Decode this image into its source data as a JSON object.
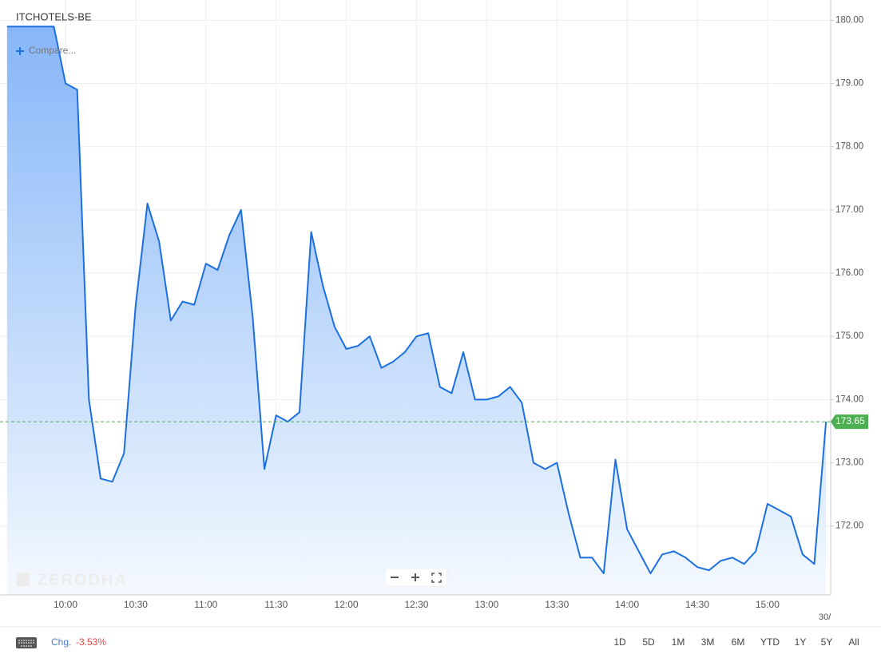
{
  "symbol": "ITCHOTELS-BE",
  "compare": "Compare...",
  "watermark": "ZERODHA",
  "chart_data": {
    "type": "line",
    "color": "#1b6fe0",
    "grid": true,
    "x": [
      "09:35",
      "09:40",
      "09:45",
      "09:50",
      "09:55",
      "10:00",
      "10:05",
      "10:10",
      "10:15",
      "10:20",
      "10:25",
      "10:30",
      "10:35",
      "10:40",
      "10:45",
      "10:50",
      "10:55",
      "11:00",
      "11:05",
      "11:10",
      "11:15",
      "11:20",
      "11:25",
      "11:30",
      "11:35",
      "11:40",
      "11:45",
      "11:50",
      "11:55",
      "12:00",
      "12:05",
      "12:10",
      "12:15",
      "12:20",
      "12:25",
      "12:30",
      "12:35",
      "12:40",
      "12:45",
      "12:50",
      "12:55",
      "13:00",
      "13:05",
      "13:10",
      "13:15",
      "13:20",
      "13:25",
      "13:30",
      "13:35",
      "13:40",
      "13:45",
      "13:50",
      "13:55",
      "14:00",
      "14:05",
      "14:10",
      "14:15",
      "14:20",
      "14:25",
      "14:30",
      "14:35",
      "14:40",
      "14:45",
      "14:50",
      "14:55",
      "15:00",
      "15:05",
      "15:10",
      "15:15",
      "15:20",
      "15:25"
    ],
    "values": [
      179.9,
      179.9,
      179.9,
      179.9,
      179.9,
      179.0,
      178.9,
      174.0,
      172.75,
      172.7,
      173.15,
      175.5,
      177.1,
      176.5,
      175.25,
      175.55,
      175.5,
      176.15,
      176.05,
      176.6,
      177.0,
      175.3,
      172.9,
      173.75,
      173.65,
      173.8,
      176.65,
      175.8,
      175.15,
      174.8,
      174.85,
      175.0,
      174.5,
      174.6,
      174.75,
      175.0,
      175.05,
      174.2,
      174.1,
      174.75,
      174.0,
      174.0,
      174.05,
      174.2,
      173.95,
      173.0,
      172.9,
      173.0,
      172.2,
      171.5,
      171.5,
      171.25,
      173.05,
      171.95,
      171.6,
      171.25,
      171.55,
      171.6,
      171.5,
      171.35,
      171.3,
      171.45,
      171.5,
      171.4,
      171.6,
      172.35,
      172.25,
      172.15,
      171.55,
      171.4,
      173.65
    ],
    "xlim": [
      "09:32",
      "15:27"
    ],
    "xticks": [
      "10:00",
      "10:30",
      "11:00",
      "11:30",
      "12:00",
      "12:30",
      "13:00",
      "13:30",
      "14:00",
      "14:30",
      "15:00"
    ],
    "date_label": "30/",
    "ylim": [
      170.91,
      180.32
    ],
    "yticks": [
      {
        "value": 172,
        "label": "172.00"
      },
      {
        "value": 173,
        "label": "173.00"
      },
      {
        "value": 174,
        "label": "174.00"
      },
      {
        "value": 175,
        "label": "175.00"
      },
      {
        "value": 176,
        "label": "176.00"
      },
      {
        "value": 177,
        "label": "177.00"
      },
      {
        "value": 178,
        "label": "178.00"
      },
      {
        "value": 179,
        "label": "179.00"
      },
      {
        "value": 180,
        "label": "180.00"
      }
    ],
    "last_price": 173.65,
    "last_price_color": "#4caf50"
  },
  "footer": {
    "change_label": "Chg.",
    "change": "-3.53%",
    "ranges": [
      "1D",
      "5D",
      "1M",
      "3M",
      "6M",
      "YTD",
      "1Y",
      "5Y",
      "All"
    ]
  }
}
